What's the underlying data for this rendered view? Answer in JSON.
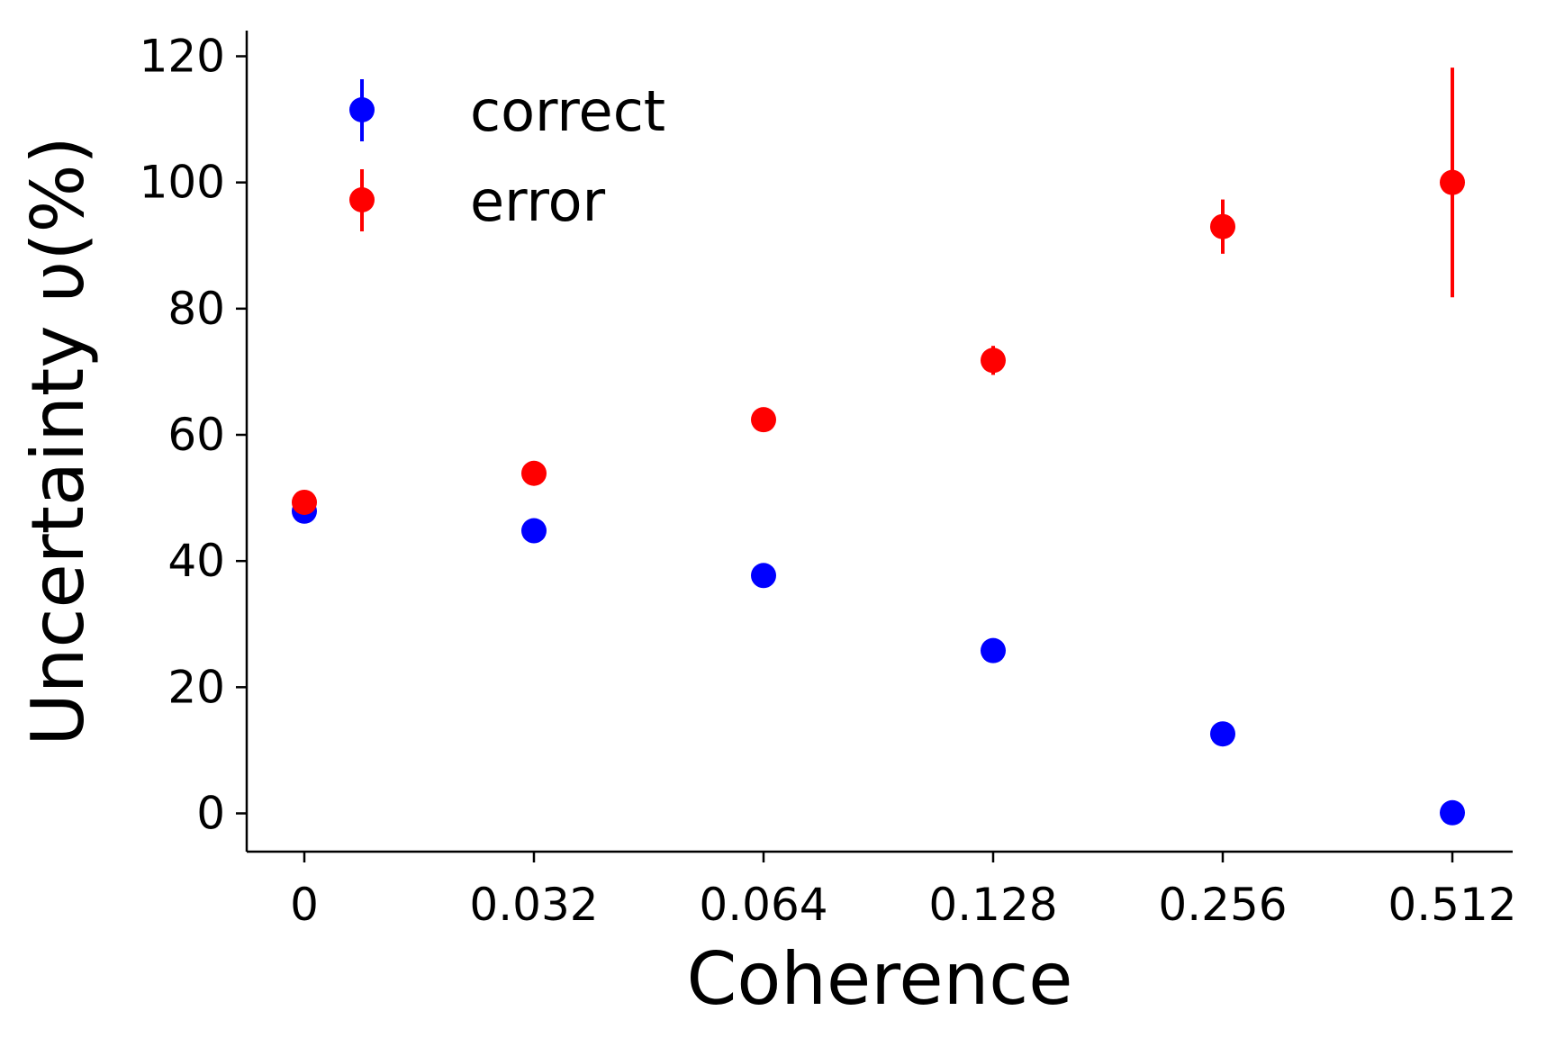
{
  "chart_data": {
    "type": "scatter",
    "title": "",
    "xlabel": "Coherence",
    "ylabel": "Uncertainty υ(%)",
    "categories": [
      "0",
      "0.032",
      "0.064",
      "0.128",
      "0.256",
      "0.512"
    ],
    "ylim": [
      -6,
      124
    ],
    "yticks": [
      0,
      20,
      40,
      60,
      80,
      100,
      120
    ],
    "grid": false,
    "legend_position": "top-left",
    "series": [
      {
        "name": "correct",
        "color": "#0000ff",
        "values": [
          47.9,
          44.8,
          37.7,
          25.8,
          12.6,
          0.1
        ],
        "errors": [
          0.6,
          0.6,
          0.6,
          0.8,
          1.0,
          1.0
        ]
      },
      {
        "name": "error",
        "color": "#ff0000",
        "values": [
          49.3,
          53.9,
          62.4,
          71.8,
          93.0,
          100.0
        ],
        "errors": [
          0.6,
          0.8,
          0.9,
          2.3,
          4.3,
          18.2
        ]
      }
    ]
  }
}
